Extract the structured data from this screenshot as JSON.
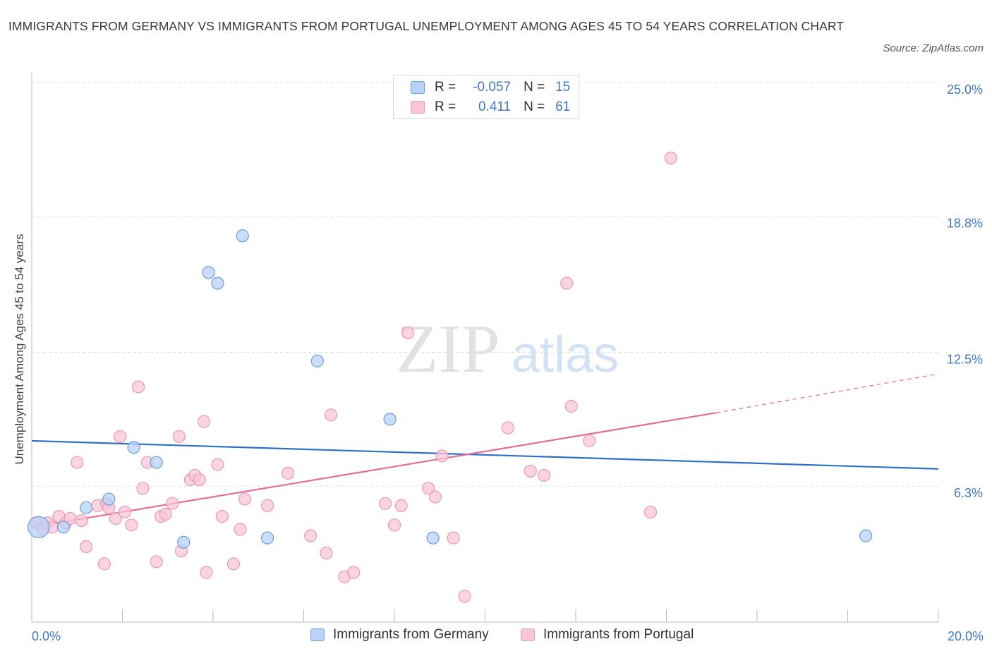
{
  "title": "IMMIGRANTS FROM GERMANY VS IMMIGRANTS FROM PORTUGAL UNEMPLOYMENT AMONG AGES 45 TO 54 YEARS CORRELATION CHART",
  "source": "Source: ZipAtlas.com",
  "watermark": {
    "zip": "ZIP",
    "atlas": "atlas"
  },
  "legend": {
    "germany": {
      "r_label": "R =",
      "r_value": "-0.057",
      "n_label": "N =",
      "n_value": "15"
    },
    "portugal": {
      "r_label": "R =",
      "r_value": "0.411",
      "n_label": "N =",
      "n_value": "61"
    }
  },
  "colors": {
    "germany_fill": "#b8d3f7",
    "germany_stroke": "#6b9de0",
    "germany_line": "#2d6fc9",
    "portugal_fill": "#f8c6d5",
    "portugal_stroke": "#e99ab3",
    "portugal_line": "#e36d97",
    "axis_label": "#3f78c8",
    "grid": "#dddddd"
  },
  "chart_data": {
    "type": "scatter",
    "title": "IMMIGRANTS FROM GERMANY VS IMMIGRANTS FROM PORTUGAL UNEMPLOYMENT AMONG AGES 45 TO 54 YEARS CORRELATION CHART",
    "xlabel": "",
    "ylabel": "Unemployment Among Ages 45 to 54 years",
    "xlim": [
      0,
      20
    ],
    "ylim": [
      0,
      25
    ],
    "x_tick_labels": [
      "0.0%",
      "20.0%"
    ],
    "y_ticks": [
      6.3,
      12.5,
      18.8,
      25.0
    ],
    "y_tick_labels": [
      "6.3%",
      "12.5%",
      "18.8%",
      "25.0%"
    ],
    "grid": true,
    "legend_position": "bottom",
    "series": [
      {
        "name": "Immigrants from Germany",
        "r": -0.057,
        "n": 15,
        "trend": {
          "x": [
            0,
            20
          ],
          "y": [
            8.4,
            7.1
          ]
        },
        "points": [
          {
            "x": 0.15,
            "y": 4.4,
            "big": true
          },
          {
            "x": 0.7,
            "y": 4.4
          },
          {
            "x": 1.2,
            "y": 5.3
          },
          {
            "x": 1.7,
            "y": 5.7
          },
          {
            "x": 2.25,
            "y": 8.1
          },
          {
            "x": 2.75,
            "y": 7.4
          },
          {
            "x": 3.35,
            "y": 3.7
          },
          {
            "x": 3.9,
            "y": 16.2
          },
          {
            "x": 4.1,
            "y": 15.7
          },
          {
            "x": 4.65,
            "y": 17.9
          },
          {
            "x": 5.2,
            "y": 3.9
          },
          {
            "x": 6.3,
            "y": 12.1
          },
          {
            "x": 7.9,
            "y": 9.4
          },
          {
            "x": 8.85,
            "y": 3.9
          },
          {
            "x": 18.4,
            "y": 4.0
          }
        ]
      },
      {
        "name": "Immigrants from Portugal",
        "r": 0.411,
        "n": 61,
        "trend": {
          "x": [
            0,
            15.1
          ],
          "y": [
            4.4,
            9.7
          ]
        },
        "trend_dashed": {
          "x": [
            15.1,
            20
          ],
          "y": [
            9.7,
            11.5
          ]
        },
        "points": [
          {
            "x": 0.1,
            "y": 4.6
          },
          {
            "x": 0.25,
            "y": 4.3
          },
          {
            "x": 0.35,
            "y": 4.6
          },
          {
            "x": 0.45,
            "y": 4.4
          },
          {
            "x": 0.6,
            "y": 4.9
          },
          {
            "x": 0.75,
            "y": 4.6
          },
          {
            "x": 0.85,
            "y": 4.8
          },
          {
            "x": 1.0,
            "y": 7.4
          },
          {
            "x": 1.1,
            "y": 4.7
          },
          {
            "x": 1.2,
            "y": 3.5
          },
          {
            "x": 1.45,
            "y": 5.4
          },
          {
            "x": 1.6,
            "y": 2.7
          },
          {
            "x": 1.65,
            "y": 5.5
          },
          {
            "x": 1.7,
            "y": 5.3
          },
          {
            "x": 1.85,
            "y": 4.8
          },
          {
            "x": 1.95,
            "y": 8.6
          },
          {
            "x": 2.05,
            "y": 5.1
          },
          {
            "x": 2.2,
            "y": 4.5
          },
          {
            "x": 2.35,
            "y": 10.9
          },
          {
            "x": 2.45,
            "y": 6.2
          },
          {
            "x": 2.55,
            "y": 7.4
          },
          {
            "x": 2.75,
            "y": 2.8
          },
          {
            "x": 2.85,
            "y": 4.9
          },
          {
            "x": 2.95,
            "y": 5.0
          },
          {
            "x": 3.1,
            "y": 5.5
          },
          {
            "x": 3.25,
            "y": 8.6
          },
          {
            "x": 3.3,
            "y": 3.3
          },
          {
            "x": 3.5,
            "y": 6.6
          },
          {
            "x": 3.6,
            "y": 6.8
          },
          {
            "x": 3.7,
            "y": 6.6
          },
          {
            "x": 3.8,
            "y": 9.3
          },
          {
            "x": 3.85,
            "y": 2.3
          },
          {
            "x": 4.1,
            "y": 7.3
          },
          {
            "x": 4.2,
            "y": 4.9
          },
          {
            "x": 4.45,
            "y": 2.7
          },
          {
            "x": 4.6,
            "y": 4.3
          },
          {
            "x": 4.7,
            "y": 5.7
          },
          {
            "x": 5.2,
            "y": 5.4
          },
          {
            "x": 5.65,
            "y": 6.9
          },
          {
            "x": 6.15,
            "y": 4.0
          },
          {
            "x": 6.5,
            "y": 3.2
          },
          {
            "x": 6.6,
            "y": 9.6
          },
          {
            "x": 6.9,
            "y": 2.1
          },
          {
            "x": 7.1,
            "y": 2.3
          },
          {
            "x": 7.8,
            "y": 5.5
          },
          {
            "x": 8.0,
            "y": 4.5
          },
          {
            "x": 8.15,
            "y": 5.4
          },
          {
            "x": 8.3,
            "y": 13.4
          },
          {
            "x": 8.75,
            "y": 6.2
          },
          {
            "x": 8.9,
            "y": 5.8
          },
          {
            "x": 9.05,
            "y": 7.7
          },
          {
            "x": 9.3,
            "y": 3.9
          },
          {
            "x": 9.55,
            "y": 1.2
          },
          {
            "x": 10.5,
            "y": 9.0
          },
          {
            "x": 11.0,
            "y": 7.0
          },
          {
            "x": 11.3,
            "y": 6.8
          },
          {
            "x": 11.8,
            "y": 15.7
          },
          {
            "x": 11.9,
            "y": 10.0
          },
          {
            "x": 12.3,
            "y": 8.4
          },
          {
            "x": 13.65,
            "y": 5.1
          },
          {
            "x": 14.1,
            "y": 21.5
          }
        ]
      }
    ]
  }
}
